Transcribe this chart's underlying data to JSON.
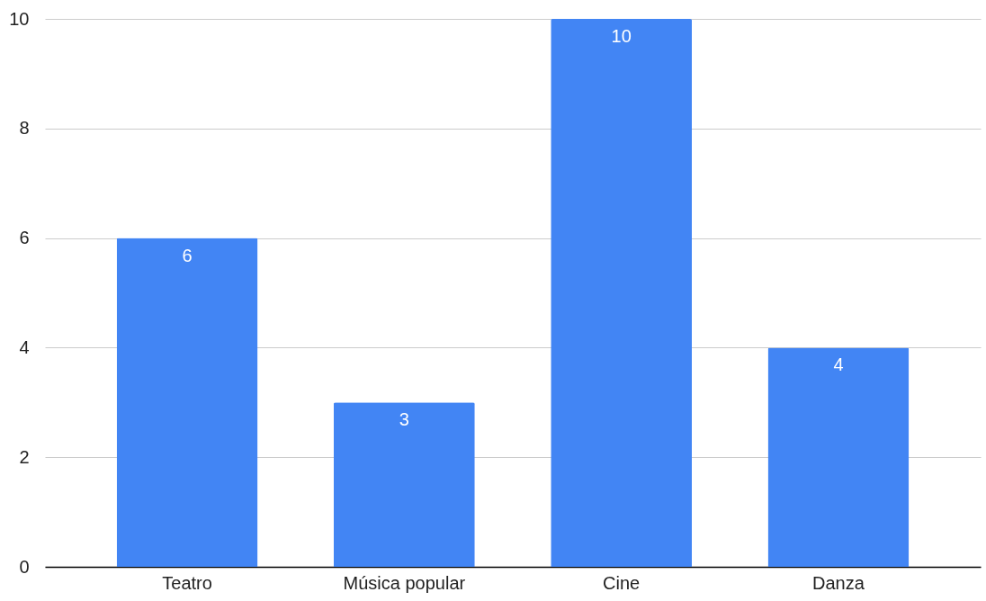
{
  "chart_data": {
    "type": "bar",
    "categories": [
      "Teatro",
      "Música popular",
      "Cine",
      "Danza"
    ],
    "values": [
      6,
      3,
      10,
      4
    ],
    "color": "#4285f4",
    "ylim": [
      0,
      10
    ],
    "yticks": [
      0,
      2,
      4,
      6,
      8,
      10
    ],
    "grid": "y",
    "data_labels": true
  }
}
